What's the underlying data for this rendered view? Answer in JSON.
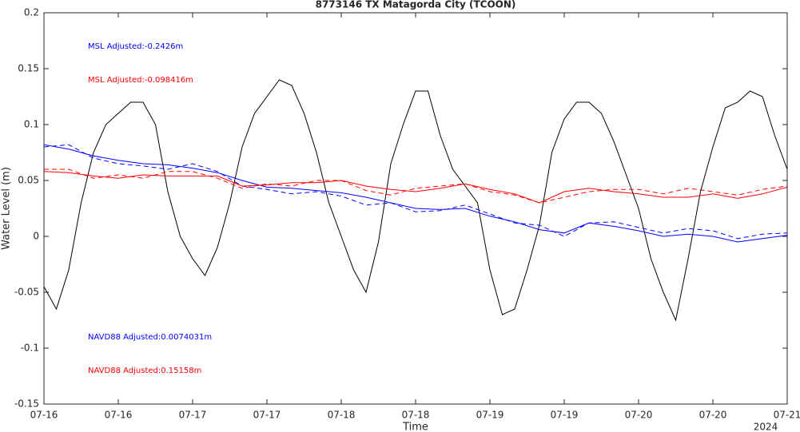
{
  "chart_data": {
    "type": "line",
    "title": "8773146 TX Matagorda City (TCOON)",
    "xlabel": "Time",
    "ylabel": "Water Level (m)",
    "x_secondary_label": "2024",
    "xlim": [
      0,
      120
    ],
    "xticks": [
      {
        "value": 0,
        "label": "07-16"
      },
      {
        "value": 12,
        "label": "07-16"
      },
      {
        "value": 24,
        "label": "07-17"
      },
      {
        "value": 36,
        "label": "07-17"
      },
      {
        "value": 48,
        "label": "07-18"
      },
      {
        "value": 60,
        "label": "07-18"
      },
      {
        "value": 72,
        "label": "07-19"
      },
      {
        "value": 84,
        "label": "07-19"
      },
      {
        "value": 96,
        "label": "07-20"
      },
      {
        "value": 108,
        "label": "07-20"
      },
      {
        "value": 120,
        "label": "07-21"
      }
    ],
    "ylim": [
      -0.15,
      0.2
    ],
    "yticks": [
      0.2,
      0.15,
      0.1,
      0.05,
      0,
      -0.05,
      -0.1,
      -0.15
    ],
    "grid": false,
    "annotations": [
      {
        "text": "MSL Adjusted:-0.2426m",
        "color": "#0000ff"
      },
      {
        "text": "MSL Adjusted:-0.098416m",
        "color": "#ff0000"
      },
      {
        "text": "NAVD88 Adjusted:0.0074031m",
        "color": "#0000ff"
      },
      {
        "text": "NAVD88 Adjusted:0.15158m",
        "color": "#ff0000"
      }
    ],
    "series": [
      {
        "color": "#000000",
        "dash": false,
        "x": [
          0,
          2,
          4,
          6,
          8,
          10,
          12,
          14,
          16,
          18,
          20,
          22,
          24,
          26,
          28,
          30,
          32,
          34,
          36,
          38,
          40,
          42,
          44,
          46,
          48,
          50,
          52,
          54,
          56,
          58,
          60,
          62,
          64,
          66,
          68,
          70,
          72,
          74,
          76,
          78,
          80,
          82,
          84,
          86,
          88,
          90,
          92,
          94,
          96,
          98,
          100,
          102,
          104,
          106,
          108,
          110,
          112,
          114,
          116,
          118,
          120
        ],
        "values": [
          -0.045,
          -0.065,
          -0.03,
          0.03,
          0.075,
          0.1,
          0.11,
          0.12,
          0.12,
          0.1,
          0.04,
          0.0,
          -0.02,
          -0.035,
          -0.01,
          0.03,
          0.08,
          0.11,
          0.125,
          0.14,
          0.135,
          0.11,
          0.075,
          0.03,
          0.0,
          -0.03,
          -0.05,
          -0.005,
          0.065,
          0.1,
          0.13,
          0.13,
          0.09,
          0.06,
          0.045,
          0.03,
          -0.03,
          -0.07,
          -0.065,
          -0.03,
          0.01,
          0.075,
          0.105,
          0.12,
          0.12,
          0.11,
          0.085,
          0.055,
          0.025,
          -0.02,
          -0.05,
          -0.075,
          -0.02,
          0.04,
          0.08,
          0.115,
          0.12,
          0.13,
          0.125,
          0.09,
          0.06
        ]
      },
      {
        "color": "#0000ff",
        "dash": false,
        "x": [
          0,
          4,
          8,
          12,
          16,
          20,
          24,
          28,
          32,
          36,
          40,
          44,
          48,
          52,
          56,
          60,
          64,
          68,
          72,
          76,
          80,
          84,
          88,
          92,
          96,
          100,
          104,
          108,
          112,
          116,
          120
        ],
        "values": [
          0.082,
          0.078,
          0.072,
          0.068,
          0.065,
          0.064,
          0.061,
          0.057,
          0.05,
          0.044,
          0.043,
          0.041,
          0.039,
          0.035,
          0.03,
          0.025,
          0.024,
          0.025,
          0.018,
          0.013,
          0.006,
          0.003,
          0.012,
          0.009,
          0.005,
          0.0,
          0.002,
          0.0,
          -0.005,
          -0.002,
          0.001
        ]
      },
      {
        "color": "#0000ff",
        "dash": true,
        "x": [
          0,
          4,
          8,
          12,
          16,
          20,
          24,
          28,
          32,
          36,
          40,
          44,
          48,
          52,
          56,
          60,
          64,
          68,
          72,
          76,
          80,
          84,
          88,
          92,
          96,
          100,
          104,
          108,
          112,
          116,
          120
        ],
        "values": [
          0.08,
          0.082,
          0.07,
          0.065,
          0.063,
          0.06,
          0.065,
          0.058,
          0.045,
          0.042,
          0.038,
          0.04,
          0.036,
          0.028,
          0.03,
          0.022,
          0.023,
          0.028,
          0.02,
          0.012,
          0.01,
          0.0,
          0.012,
          0.013,
          0.008,
          0.003,
          0.007,
          0.005,
          -0.002,
          0.002,
          0.003
        ]
      },
      {
        "color": "#ff0000",
        "dash": false,
        "x": [
          0,
          4,
          8,
          12,
          16,
          20,
          24,
          28,
          32,
          36,
          40,
          44,
          48,
          52,
          56,
          60,
          64,
          68,
          72,
          76,
          80,
          84,
          88,
          92,
          96,
          100,
          104,
          108,
          112,
          116,
          120
        ],
        "values": [
          0.058,
          0.057,
          0.054,
          0.052,
          0.055,
          0.054,
          0.054,
          0.054,
          0.045,
          0.046,
          0.048,
          0.048,
          0.05,
          0.045,
          0.042,
          0.04,
          0.043,
          0.047,
          0.042,
          0.038,
          0.03,
          0.04,
          0.043,
          0.04,
          0.038,
          0.035,
          0.035,
          0.038,
          0.034,
          0.038,
          0.044
        ]
      },
      {
        "color": "#ff0000",
        "dash": true,
        "x": [
          0,
          4,
          8,
          12,
          16,
          20,
          24,
          28,
          32,
          36,
          40,
          44,
          48,
          52,
          56,
          60,
          64,
          68,
          72,
          76,
          80,
          84,
          88,
          92,
          96,
          100,
          104,
          108,
          112,
          116,
          120
        ],
        "values": [
          0.06,
          0.06,
          0.052,
          0.055,
          0.052,
          0.058,
          0.058,
          0.052,
          0.043,
          0.047,
          0.045,
          0.05,
          0.05,
          0.041,
          0.037,
          0.043,
          0.045,
          0.047,
          0.04,
          0.037,
          0.03,
          0.035,
          0.04,
          0.042,
          0.042,
          0.038,
          0.043,
          0.04,
          0.037,
          0.042,
          0.045
        ]
      }
    ]
  }
}
